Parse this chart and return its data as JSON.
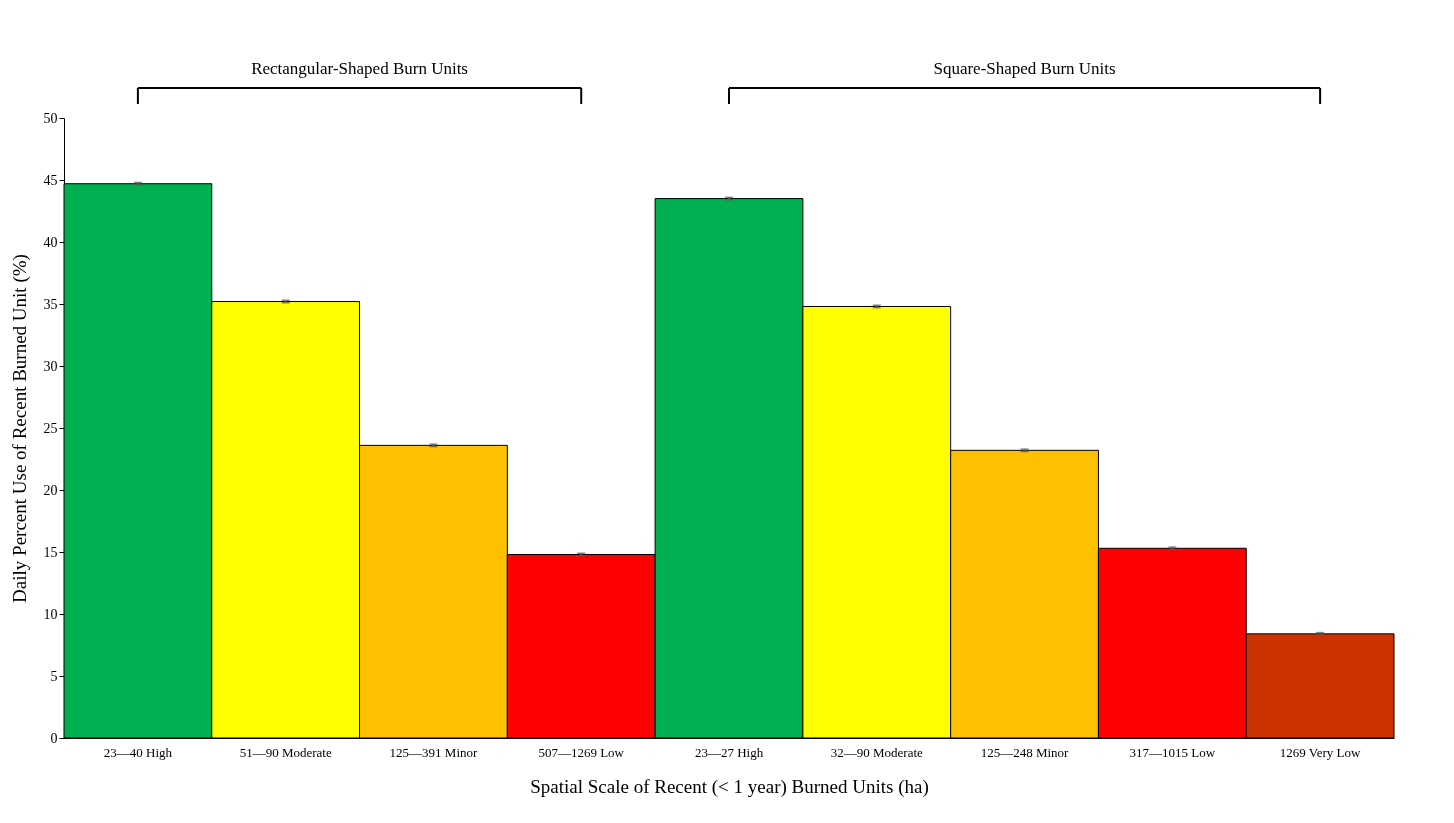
{
  "chart_data": {
    "type": "bar",
    "xlabel": "Spatial Scale of Recent (< 1 year) Burned Units (ha)",
    "ylabel": "Daily Percent Use of Recent Burned Unit (%)",
    "categories": [
      "23—40 High",
      "51—90 Moderate",
      "125—391 Minor",
      "507—1269 Low",
      "23—27 High",
      "32—90 Moderate",
      "125—248 Minor",
      "317—1015 Low",
      "1269 Very Low"
    ],
    "values": [
      44.7,
      35.2,
      23.6,
      14.8,
      43.5,
      34.8,
      23.2,
      15.3,
      8.4
    ],
    "errors": [
      0.1,
      0.1,
      0.1,
      0.1,
      0.1,
      0.1,
      0.1,
      0.1,
      0.1
    ],
    "colors": [
      "#00b050",
      "#ffff00",
      "#ffc000",
      "#ff0000",
      "#00b050",
      "#ffff00",
      "#ffc000",
      "#ff0000",
      "#cc3300"
    ],
    "ylim": [
      0,
      50
    ],
    "yticks": [
      0,
      5,
      10,
      15,
      20,
      25,
      30,
      35,
      40,
      45,
      50
    ],
    "grid": false,
    "annotations": [
      "Rectangular-Shaped  Burn Units",
      "Square-Shaped  Burn Units"
    ]
  }
}
